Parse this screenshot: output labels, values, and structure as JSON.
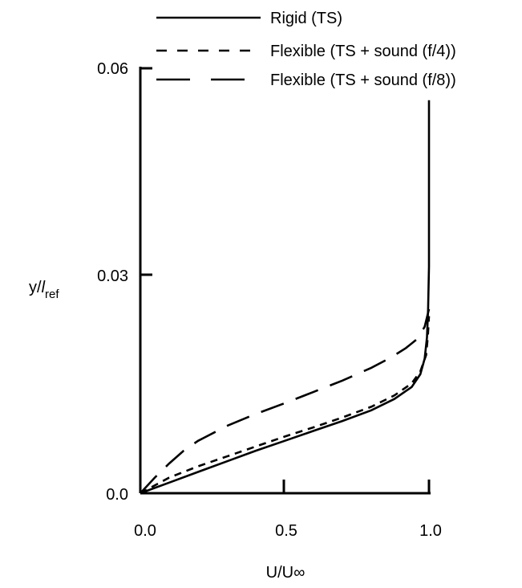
{
  "chart_data": {
    "type": "line",
    "title": "",
    "xlabel": "U/U∞",
    "ylabel_main": "y/",
    "ylabel_italic": "l",
    "ylabel_sub": "ref",
    "xlim": [
      0,
      1
    ],
    "ylim": [
      0,
      0.06
    ],
    "x_ticks": [
      0.0,
      0.5,
      1.0
    ],
    "x_tick_labels": [
      "0.0",
      "0.5",
      "1.0"
    ],
    "y_ticks": [
      0.0,
      0.03,
      0.06
    ],
    "y_tick_labels": [
      "0.0",
      "0.03",
      "0.06"
    ],
    "legend_placement": "top",
    "grid": false,
    "series": [
      {
        "name": "Rigid (TS)",
        "dash": "solid",
        "points": [
          [
            0,
            0
          ],
          [
            0.1,
            0.0015
          ],
          [
            0.2,
            0.003
          ],
          [
            0.3,
            0.0045
          ],
          [
            0.4,
            0.006
          ],
          [
            0.5,
            0.0074
          ],
          [
            0.6,
            0.0088
          ],
          [
            0.7,
            0.0102
          ],
          [
            0.8,
            0.0117
          ],
          [
            0.88,
            0.0133
          ],
          [
            0.94,
            0.015
          ],
          [
            0.97,
            0.0168
          ],
          [
            0.985,
            0.019
          ],
          [
            0.993,
            0.022
          ],
          [
            0.997,
            0.026
          ],
          [
            1.0,
            0.032
          ],
          [
            1.0,
            0.04
          ],
          [
            1.0,
            0.05
          ],
          [
            1.0,
            0.0555
          ]
        ]
      },
      {
        "name": "Flexible (TS + sound (f/4))",
        "dash": "short",
        "points": [
          [
            0,
            0
          ],
          [
            0.1,
            0.0022
          ],
          [
            0.2,
            0.0038
          ],
          [
            0.3,
            0.0052
          ],
          [
            0.4,
            0.0066
          ],
          [
            0.5,
            0.008
          ],
          [
            0.6,
            0.0093
          ],
          [
            0.7,
            0.0107
          ],
          [
            0.8,
            0.0122
          ],
          [
            0.88,
            0.0138
          ],
          [
            0.94,
            0.0155
          ],
          [
            0.97,
            0.0172
          ],
          [
            0.99,
            0.0195
          ],
          [
            0.996,
            0.0222
          ],
          [
            1.0,
            0.025
          ]
        ]
      },
      {
        "name": "Flexible (TS + sound (f/8))",
        "dash": "long",
        "points": [
          [
            0,
            0
          ],
          [
            0.05,
            0.0022
          ],
          [
            0.1,
            0.0042
          ],
          [
            0.15,
            0.006
          ],
          [
            0.2,
            0.0074
          ],
          [
            0.3,
            0.0095
          ],
          [
            0.4,
            0.0112
          ],
          [
            0.5,
            0.0127
          ],
          [
            0.6,
            0.0143
          ],
          [
            0.7,
            0.0159
          ],
          [
            0.8,
            0.0177
          ],
          [
            0.87,
            0.0192
          ],
          [
            0.92,
            0.0205
          ],
          [
            0.96,
            0.0218
          ],
          [
            0.985,
            0.0235
          ],
          [
            1.0,
            0.026
          ]
        ]
      }
    ]
  }
}
